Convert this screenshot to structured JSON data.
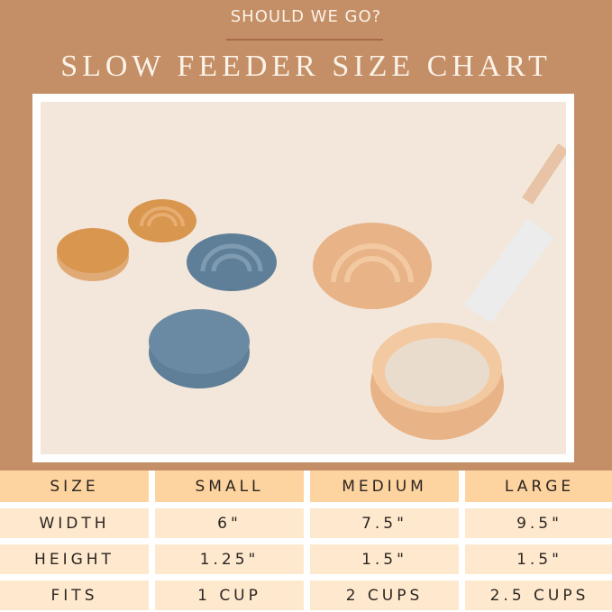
{
  "header": {
    "kicker": "SHOULD WE GO?",
    "title": "SLOW FEEDER SIZE CHART"
  },
  "photo": {
    "background": "#f3e7db",
    "bowl_colors": {
      "orange": "#d9964f",
      "blue": "#5f7f99",
      "peach": "#e8b387"
    }
  },
  "table": {
    "headers": [
      "SIZE",
      "SMALL",
      "MEDIUM",
      "LARGE"
    ],
    "rows": [
      [
        "WIDTH",
        "6\"",
        "7.5\"",
        "9.5\""
      ],
      [
        "HEIGHT",
        "1.25\"",
        "1.5\"",
        "1.5\""
      ],
      [
        "FITS",
        "1 CUP",
        "2 CUPS",
        "2.5 CUPS"
      ]
    ]
  },
  "colors": {
    "background": "#c48f66",
    "header_row": "#fdd3a0",
    "body_row": "#fee9cf"
  }
}
